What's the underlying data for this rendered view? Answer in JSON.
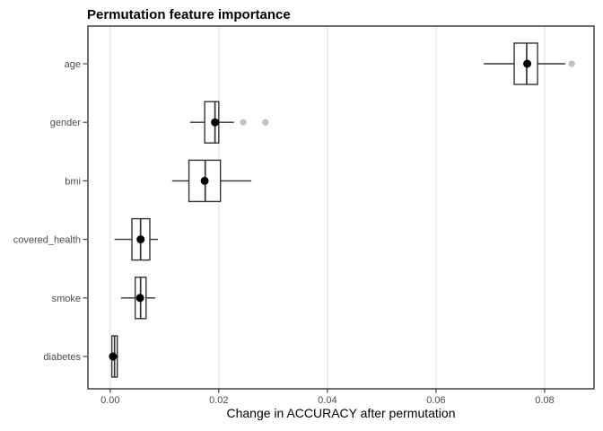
{
  "chart_data": {
    "type": "boxplot",
    "orientation": "horizontal",
    "title": "Permutation feature importance",
    "xlabel": "Change in ACCURACY after permutation",
    "ylabel": "",
    "legend": "none",
    "grid": "vertical-major-only",
    "categories": [
      "age",
      "gender",
      "bmi",
      "covered_health",
      "smoke",
      "diabetes"
    ],
    "x_ticks": [
      0.0,
      0.02,
      0.04,
      0.06,
      0.08
    ],
    "x_tick_labels": [
      "0.00",
      "0.02",
      "0.04",
      "0.06",
      "0.08"
    ],
    "xlim": [
      -0.0041,
      0.0891
    ],
    "boxes": [
      {
        "category": "age",
        "whisker_low": 0.0688,
        "q1": 0.0744,
        "median": 0.0767,
        "q3": 0.0787,
        "whisker_high": 0.0838,
        "mean": 0.0768,
        "outliers": [
          0.085
        ]
      },
      {
        "category": "gender",
        "whisker_low": 0.0147,
        "q1": 0.0174,
        "median": 0.0193,
        "q3": 0.02,
        "whisker_high": 0.0228,
        "mean": 0.0193,
        "outliers": [
          0.0245,
          0.0286
        ]
      },
      {
        "category": "bmi",
        "whisker_low": 0.0114,
        "q1": 0.0145,
        "median": 0.0175,
        "q3": 0.0203,
        "whisker_high": 0.026,
        "mean": 0.0174,
        "outliers": []
      },
      {
        "category": "covered_health",
        "whisker_low": 0.0008,
        "q1": 0.004,
        "median": 0.0056,
        "q3": 0.0073,
        "whisker_high": 0.0088,
        "mean": 0.0056,
        "outliers": []
      },
      {
        "category": "smoke",
        "whisker_low": 0.002,
        "q1": 0.0046,
        "median": 0.0056,
        "q3": 0.0066,
        "whisker_high": 0.0083,
        "mean": 0.0055,
        "outliers": []
      },
      {
        "category": "diabetes",
        "whisker_low": 0.0002,
        "q1": 0.0003,
        "median": 0.0008,
        "q3": 0.0013,
        "whisker_high": 0.0015,
        "mean": 0.0005,
        "outliers": []
      }
    ],
    "colors": {
      "box_stroke": "#333333",
      "box_fill": "#ffffff",
      "median_stroke": "#333333",
      "mean_dot": "#000000",
      "outlier_fill": "#c4c4c4",
      "outlier_stroke": "#ababab",
      "gridline": "#e4e4e4",
      "panel_border": "#333333",
      "panel_fill": "#ffffff",
      "tick_mark": "#333333",
      "axis_text": "#4d4d4d",
      "title_color": "#000000"
    }
  }
}
